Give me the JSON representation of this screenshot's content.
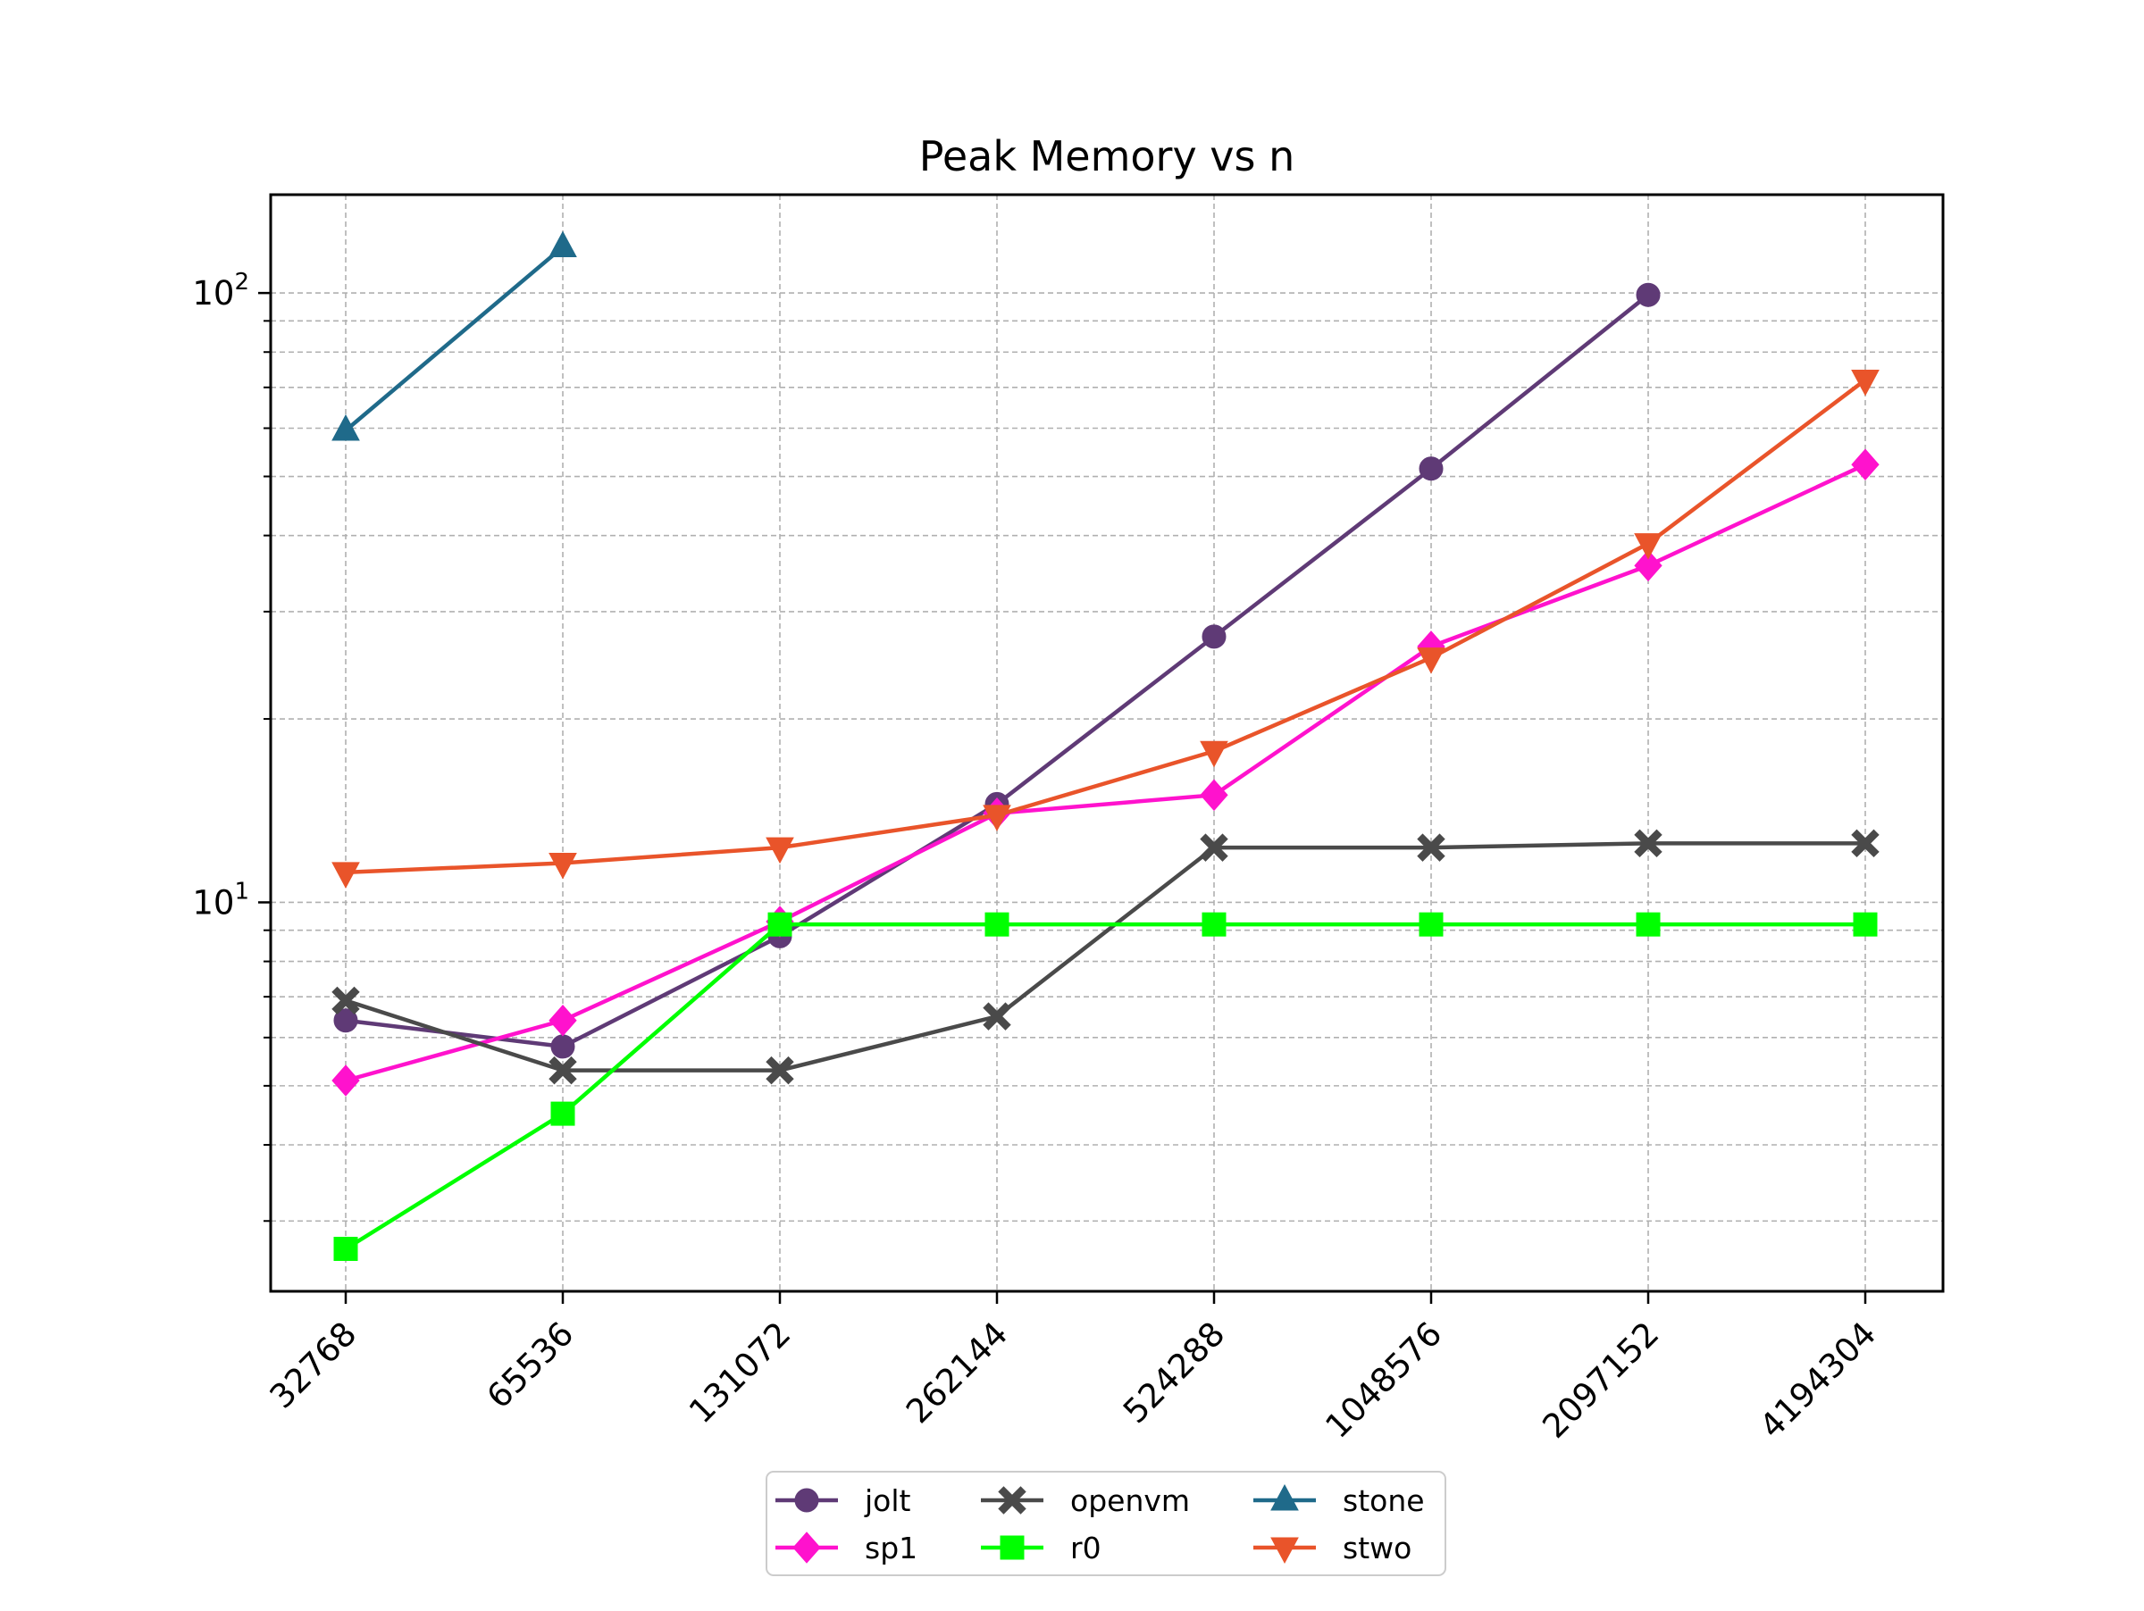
{
  "chart_data": {
    "type": "line",
    "title": "Peak Memory vs n",
    "xlabel": "",
    "ylabel": "",
    "x": [
      "32768",
      "65536",
      "131072",
      "262144",
      "524288",
      "1048576",
      "2097152",
      "4194304"
    ],
    "y_scale": "log",
    "ylim": [
      2.3,
      145
    ],
    "y_major_ticks": [
      {
        "value": 10,
        "base": "10",
        "exp": "1"
      },
      {
        "value": 100,
        "base": "10",
        "exp": "2"
      }
    ],
    "y_minor_ticks": [
      3,
      4,
      5,
      6,
      7,
      8,
      9,
      20,
      30,
      40,
      50,
      60,
      70,
      80,
      90
    ],
    "grid": true,
    "legend_position": "bottom-center",
    "series": [
      {
        "name": "jolt",
        "color": "#5f3a76",
        "marker": "circle",
        "values": [
          6.4,
          5.8,
          8.8,
          14.5,
          27.3,
          51.5,
          99.3,
          null
        ]
      },
      {
        "name": "sp1",
        "color": "#ff12cd",
        "marker": "diamond",
        "values": [
          5.1,
          6.4,
          9.3,
          14.0,
          15.0,
          26.3,
          35.7,
          52.3
        ]
      },
      {
        "name": "openvm",
        "color": "#4a4a4a",
        "marker": "x-filled",
        "values": [
          6.9,
          5.3,
          5.3,
          6.5,
          12.3,
          12.3,
          12.5,
          12.5
        ]
      },
      {
        "name": "r0",
        "color": "#00ff00",
        "marker": "square",
        "values": [
          2.7,
          4.5,
          9.2,
          9.2,
          9.2,
          9.2,
          9.2,
          9.2
        ]
      },
      {
        "name": "stone",
        "color": "#1f6a8a",
        "marker": "triangle-up",
        "values": [
          59.5,
          119.0,
          null,
          null,
          null,
          null,
          null,
          null
        ]
      },
      {
        "name": "stwo",
        "color": "#e9542a",
        "marker": "triangle-down",
        "values": [
          11.2,
          11.6,
          12.3,
          13.9,
          17.7,
          25.2,
          38.8,
          72.0
        ]
      }
    ]
  }
}
